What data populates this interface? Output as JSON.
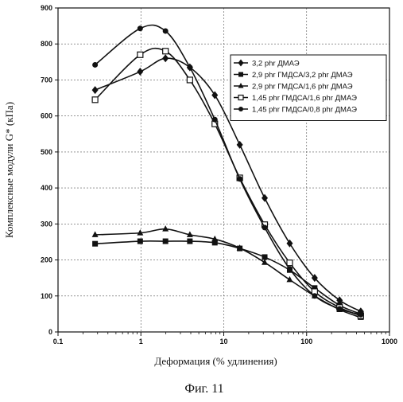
{
  "chart_data": {
    "type": "line",
    "x_scale": "log",
    "xlim": [
      0.1,
      1000
    ],
    "ylim": [
      0,
      900
    ],
    "grid": true,
    "legend_position": "top-right",
    "xlabel": "Деформация (% удлинения)",
    "ylabel": "Комплексные модули G* (кПа)",
    "x_ticks": [
      "0.1",
      "1",
      "10",
      "100",
      "1000"
    ],
    "y_ticks": [
      "0",
      "100",
      "200",
      "300",
      "400",
      "500",
      "600",
      "700",
      "800",
      "900"
    ],
    "caption": "Фиг. 11",
    "series": [
      {
        "name": "3,2 phr ДМАЭ",
        "marker": "diamond",
        "x": [
          0.28,
          0.98,
          1.98,
          3.9,
          7.8,
          15.6,
          31.2,
          62.5,
          125,
          250,
          450
        ],
        "y": [
          672,
          723,
          760,
          735,
          658,
          520,
          372,
          246,
          150,
          88,
          57
        ]
      },
      {
        "name": "2,9 phr ГМДСА/3,2 phr ДМАЭ",
        "marker": "square",
        "x": [
          0.28,
          0.98,
          1.98,
          3.9,
          7.8,
          15.6,
          31.2,
          62.5,
          125,
          250,
          450
        ],
        "y": [
          245,
          252,
          252,
          252,
          248,
          232,
          208,
          172,
          122,
          74,
          50
        ]
      },
      {
        "name": "2,9 phr ГМДСА/1,6 phr ДМАЭ",
        "marker": "triangle",
        "x": [
          0.28,
          0.98,
          1.98,
          3.9,
          7.8,
          15.6,
          31.2,
          62.5,
          125,
          250,
          450
        ],
        "y": [
          270,
          275,
          286,
          270,
          258,
          233,
          193,
          145,
          100,
          62,
          40
        ]
      },
      {
        "name": "1,45 phr ГМДСА/1,6 phr ДМАЭ",
        "marker": "square-open",
        "x": [
          0.28,
          0.98,
          1.98,
          3.9,
          7.8,
          15.6,
          31.2,
          62.5,
          125,
          250,
          450
        ],
        "y": [
          645,
          770,
          780,
          700,
          578,
          428,
          298,
          192,
          112,
          68,
          45
        ]
      },
      {
        "name": "1,45 phr ГМДСА/0,8 phr ДМАЭ",
        "marker": "circle",
        "x": [
          0.28,
          0.98,
          1.98,
          3.9,
          7.8,
          15.6,
          31.2,
          62.5,
          125,
          250,
          450
        ],
        "y": [
          742,
          843,
          836,
          735,
          590,
          425,
          290,
          175,
          100,
          64,
          48
        ]
      }
    ]
  }
}
